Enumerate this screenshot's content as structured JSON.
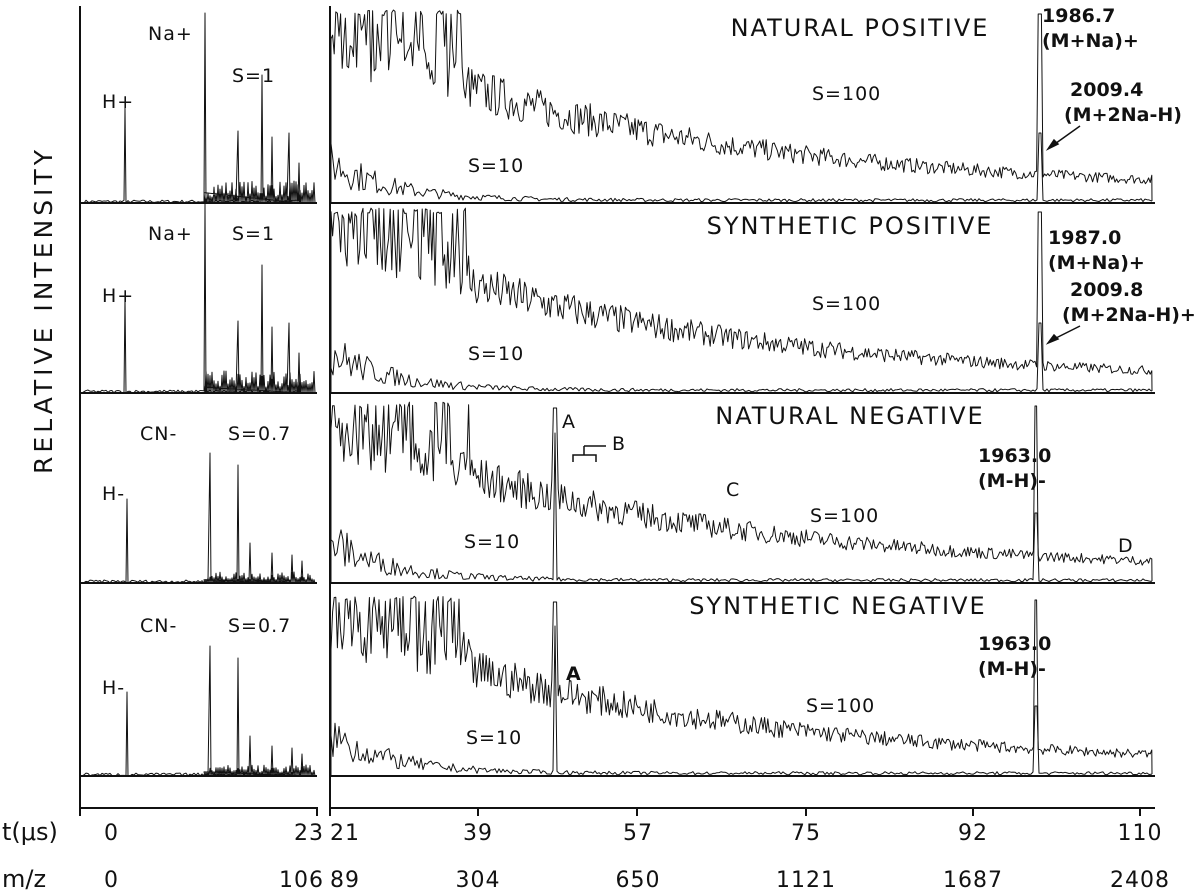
{
  "chart_data": {
    "type": "line",
    "ylabel": "RELATIVE INTENSITY",
    "x_axis": {
      "time_label": "t(μs)",
      "time_ticks": [
        "0",
        "23",
        "21",
        "39",
        "57",
        "75",
        "92",
        "110"
      ],
      "mz_label": "m/z",
      "mz_ticks": [
        "0",
        "106",
        "89",
        "304",
        "650",
        "1121",
        "1687",
        "2408"
      ]
    },
    "panels": [
      {
        "title": "NATURAL POSITIVE",
        "left_labels": [
          "H+",
          "Na+",
          "S=1"
        ],
        "scale_labels": [
          "S=100",
          "S=10"
        ],
        "peaks": [
          {
            "mz": 1986.7,
            "label": "1986.7",
            "ion": "(M+Na)+"
          },
          {
            "mz": 2009.4,
            "label": "2009.4",
            "ion": "(M+2Na-H)"
          }
        ]
      },
      {
        "title": "SYNTHETIC POSITIVE",
        "left_labels": [
          "H+",
          "Na+",
          "S=1"
        ],
        "scale_labels": [
          "S=100",
          "S=10"
        ],
        "peaks": [
          {
            "mz": 1987.0,
            "label": "1987.0",
            "ion": "(M+Na)+"
          },
          {
            "mz": 2009.8,
            "label": "2009.8",
            "ion": "(M+2Na-H)+"
          }
        ]
      },
      {
        "title": "NATURAL NEGATIVE",
        "left_labels": [
          "H-",
          "CN-",
          "S=0.7"
        ],
        "scale_labels": [
          "S=100",
          "S=10"
        ],
        "peaks": [
          {
            "mz": 1963.0,
            "label": "1963.0",
            "ion": "(M-H)-"
          }
        ],
        "markers": [
          "A",
          "B",
          "C",
          "D"
        ]
      },
      {
        "title": "SYNTHETIC NEGATIVE",
        "left_labels": [
          "H-",
          "CN-",
          "S=0.7"
        ],
        "scale_labels": [
          "S=100",
          "S=10"
        ],
        "peaks": [
          {
            "mz": 1963.0,
            "label": "1963.0",
            "ion": "(M-H)-"
          }
        ],
        "markers": [
          "A"
        ]
      }
    ]
  }
}
